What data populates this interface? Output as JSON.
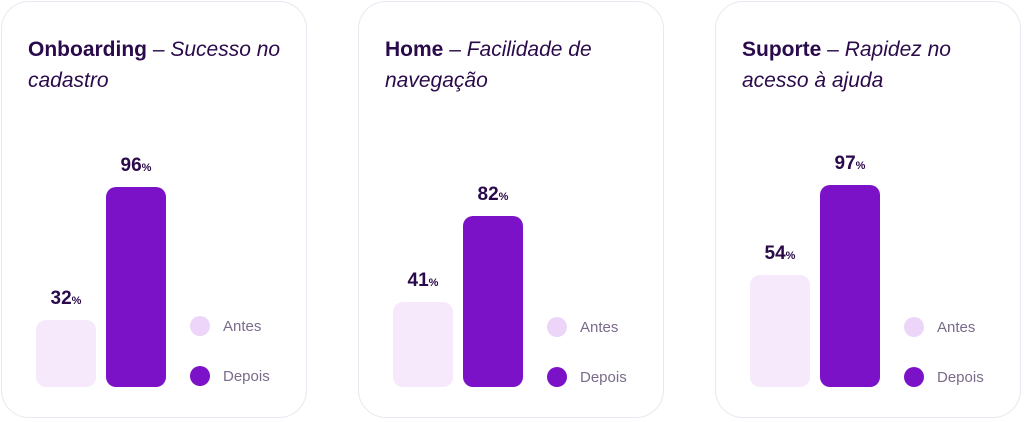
{
  "colors": {
    "antes": "#f5e9fb",
    "depois": "#7b12c8",
    "antes_dot": "#ecd5f8",
    "text_dark": "#2a0a4a",
    "legend_text": "#7a6b8a"
  },
  "chart_data": [
    {
      "type": "bar",
      "title_bold": "Onboarding",
      "title_sep": " – ",
      "title_italic": "Sucesso no cadastro",
      "categories": [
        "Antes",
        "Depois"
      ],
      "values": [
        32,
        96
      ],
      "value_labels": [
        "32",
        "96"
      ],
      "unit": "%",
      "ylim": [
        0,
        100
      ],
      "legend": [
        "Antes",
        "Depois"
      ]
    },
    {
      "type": "bar",
      "title_bold": "Home",
      "title_sep": " – ",
      "title_italic": "Facilidade de navegação",
      "categories": [
        "Antes",
        "Depois"
      ],
      "values": [
        41,
        82
      ],
      "value_labels": [
        "41",
        "82"
      ],
      "unit": "%",
      "ylim": [
        0,
        100
      ],
      "legend": [
        "Antes",
        "Depois"
      ]
    },
    {
      "type": "bar",
      "title_bold": "Suporte",
      "title_sep": " – ",
      "title_italic": "Rapidez no acesso à ajuda",
      "categories": [
        "Antes",
        "Depois"
      ],
      "values": [
        54,
        97
      ],
      "value_labels": [
        "54",
        "97"
      ],
      "unit": "%",
      "ylim": [
        0,
        100
      ],
      "legend": [
        "Antes",
        "Depois"
      ]
    }
  ]
}
